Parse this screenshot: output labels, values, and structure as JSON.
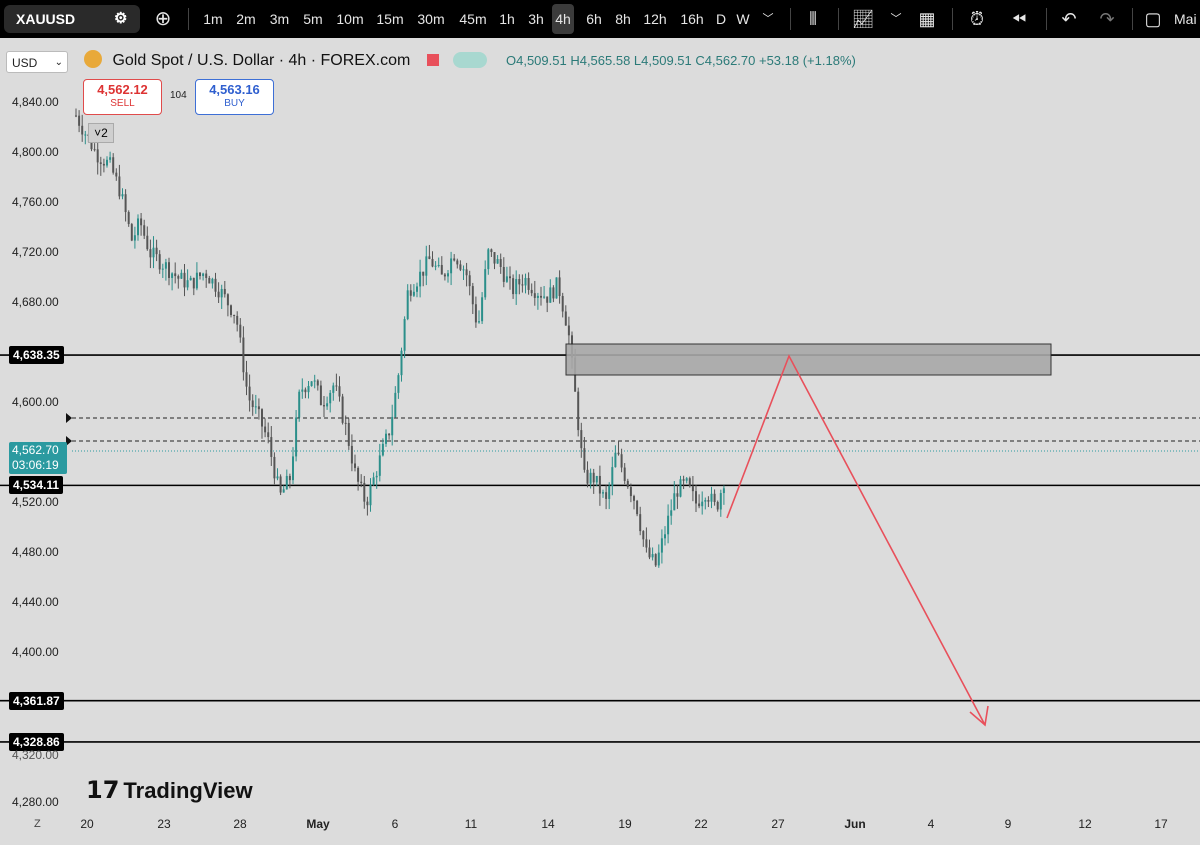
{
  "toolbar": {
    "symbol": "XAUUSD",
    "timeframes": [
      "1m",
      "2m",
      "3m",
      "5m",
      "10m",
      "15m",
      "30m",
      "45m",
      "1h",
      "3h",
      "4h",
      "6h",
      "8h",
      "12h",
      "16h",
      "D",
      "W"
    ],
    "active_timeframe": "4h",
    "right_label": "Mai"
  },
  "legend": {
    "currency": "USD",
    "title": "Gold Spot / U.S. Dollar · 4h · FOREX.com",
    "ohlc": "O4,509.51  H4,565.58  L4,509.51  C4,562.70  +53.18 (+1.18%)"
  },
  "trade": {
    "sell_price": "4,562.12",
    "sell_label": "SELL",
    "spread": "104",
    "buy_price": "4,563.16",
    "buy_label": "BUY",
    "badge": "2"
  },
  "price_axis": {
    "ticks": [
      "4,840.00",
      "4,800.00",
      "4,760.00",
      "4,720.00",
      "4,680.00",
      "4,600.00",
      "4,520.00",
      "4,480.00",
      "4,440.00",
      "4,400.00",
      "4,280.00"
    ],
    "tick_values": [
      4840,
      4800,
      4760,
      4720,
      4680,
      4600,
      4520,
      4480,
      4440,
      4400,
      4280
    ],
    "levels": [
      {
        "label": "4,638.35",
        "value": 4638.35
      },
      {
        "label": "4,534.11",
        "value": 4534.11
      },
      {
        "label": "4,361.87",
        "value": 4361.87
      },
      {
        "label": "4,328.86",
        "value": 4328.86
      }
    ],
    "current_price": "4,562.70",
    "countdown": "03:06:19",
    "partial_tick": "4,320.00"
  },
  "time_axis": {
    "labels": [
      "20",
      "23",
      "28",
      "May",
      "6",
      "11",
      "14",
      "19",
      "22",
      "27",
      "Jun",
      "4",
      "9",
      "12",
      "17"
    ]
  },
  "watermark": "TradingView",
  "corner_label": "Z",
  "colors": {
    "up": "#2b8f8a",
    "down": "#555555",
    "arrow": "#e8505b",
    "zone": "#a8a8a8"
  }
}
